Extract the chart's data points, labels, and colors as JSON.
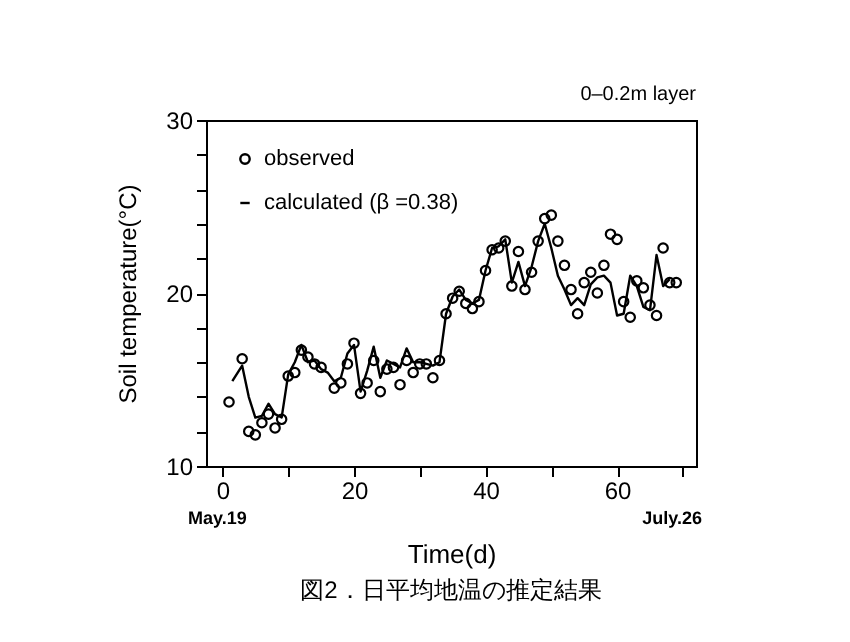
{
  "chart_data": {
    "type": "scatter",
    "title": "図2．日平均地温の推定結果",
    "xlabel": "Time(d)",
    "ylabel": "Soil temperature(°C)",
    "annotations": [
      "0–0.2m layer",
      "May.19",
      "July.26"
    ],
    "xlim": [
      -2.5,
      72
    ],
    "ylim": [
      10,
      30
    ],
    "xticks": [
      0,
      {
        "value": 10,
        "label": null
      },
      20,
      {
        "value": 30,
        "label": null
      },
      40,
      {
        "value": 50,
        "label": null
      },
      60,
      {
        "value": 70,
        "label": null
      }
    ],
    "yticks": [
      10,
      {
        "value": 12,
        "label": null
      },
      {
        "value": 14,
        "label": null
      },
      {
        "value": 16,
        "label": null
      },
      {
        "value": 18,
        "label": null
      },
      20,
      {
        "value": 22,
        "label": null
      },
      {
        "value": 24,
        "label": null
      },
      {
        "value": 26,
        "label": null
      },
      {
        "value": 28,
        "label": null
      },
      30
    ],
    "grid": false,
    "legend": "top left",
    "series": [
      {
        "name": "observed",
        "type": "scatter",
        "marker": "circle",
        "color": "#000000",
        "x": [
          1,
          3,
          4,
          5,
          6,
          7,
          8,
          9,
          10,
          11,
          12,
          13,
          14,
          15,
          17,
          18,
          19,
          20,
          21,
          22,
          23,
          24,
          25,
          26,
          27,
          28,
          29,
          30,
          31,
          32,
          33,
          34,
          35,
          36,
          37,
          38,
          39,
          40,
          41,
          42,
          43,
          44,
          45,
          46,
          47,
          48,
          49,
          50,
          51,
          52,
          53,
          54,
          55,
          56,
          57,
          58,
          59,
          60,
          61,
          62,
          63,
          64,
          65,
          66,
          67,
          68,
          69
        ],
        "values": [
          13.7,
          16.2,
          12.0,
          11.8,
          12.5,
          13.0,
          12.2,
          12.7,
          15.2,
          15.4,
          16.7,
          16.3,
          15.9,
          15.7,
          14.5,
          14.8,
          15.9,
          17.1,
          14.2,
          14.8,
          16.1,
          14.3,
          15.6,
          15.7,
          14.7,
          16.1,
          15.4,
          15.9,
          15.9,
          15.1,
          16.1,
          18.8,
          19.7,
          20.1,
          19.4,
          19.1,
          19.5,
          21.3,
          22.5,
          22.6,
          23.0,
          20.4,
          22.4,
          20.2,
          21.2,
          23.0,
          24.3,
          24.5,
          23.0,
          21.6,
          20.2,
          18.8,
          20.6,
          21.2,
          20.0,
          21.6,
          23.4,
          23.1,
          19.5,
          18.6,
          20.7,
          20.3,
          19.3,
          18.7,
          22.6,
          20.6,
          20.6
        ]
      },
      {
        "name": "calculated (β =0.38)",
        "type": "line",
        "line_style": "solid",
        "color": "#000000",
        "x": [
          1.5,
          3,
          4,
          5,
          6,
          7,
          8,
          9,
          10,
          11,
          12,
          13,
          14,
          15,
          16,
          17,
          18,
          19,
          20,
          21,
          22,
          23,
          24,
          25,
          26,
          27,
          28,
          29,
          30,
          31,
          32,
          33,
          34,
          35,
          36,
          37,
          38,
          39,
          40,
          41,
          42,
          43,
          44,
          45,
          46,
          47,
          48,
          49,
          50,
          51,
          52,
          53,
          54,
          55,
          56,
          57,
          58,
          59,
          60,
          61,
          62,
          63,
          64,
          65,
          66,
          67,
          68
        ],
        "values": [
          14.9,
          15.8,
          14.0,
          12.8,
          12.9,
          13.6,
          13.0,
          12.8,
          15.3,
          16.0,
          17.0,
          16.0,
          16.1,
          15.6,
          15.4,
          14.9,
          15.1,
          16.5,
          17.0,
          14.3,
          15.5,
          16.9,
          15.1,
          16.1,
          15.9,
          15.7,
          16.8,
          16.0,
          16.0,
          15.9,
          15.8,
          16.0,
          18.8,
          19.8,
          20.2,
          19.6,
          19.4,
          19.6,
          21.3,
          22.6,
          22.7,
          23.1,
          20.6,
          21.8,
          20.4,
          21.5,
          23.0,
          24.0,
          22.6,
          21.0,
          20.2,
          19.3,
          19.7,
          19.3,
          20.5,
          20.9,
          21.0,
          20.6,
          18.7,
          18.8,
          21.0,
          20.4,
          19.2,
          19.0,
          22.2,
          20.4,
          20.8
        ]
      }
    ]
  }
}
